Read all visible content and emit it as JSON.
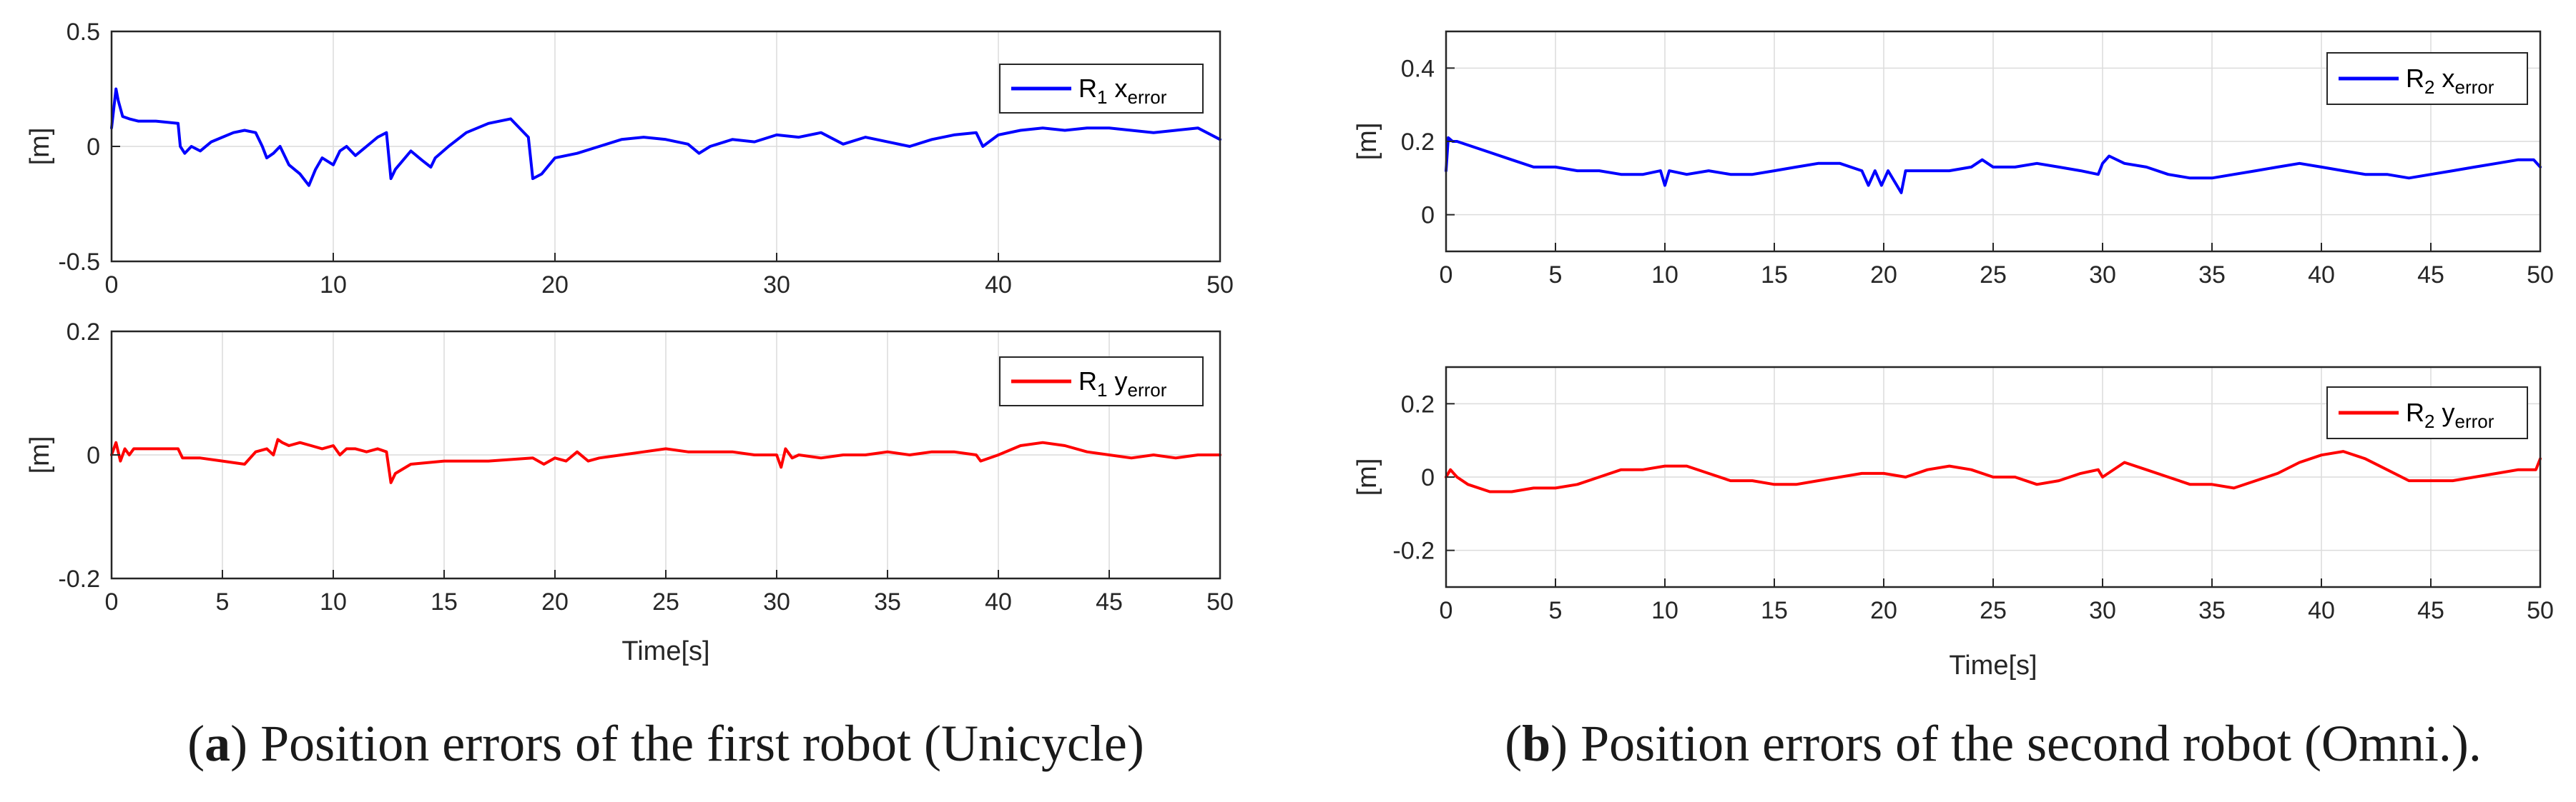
{
  "chart_data": [
    {
      "type": "line",
      "panel": "a-top",
      "title": "",
      "xlabel": "",
      "ylabel": "[m]",
      "xlim": [
        0,
        50
      ],
      "ylim": [
        -0.5,
        0.5
      ],
      "xticks": [
        "0",
        "10",
        "20",
        "30",
        "40",
        "50"
      ],
      "yticks": [
        "0.5",
        "0",
        "-0.5"
      ],
      "grid": true,
      "legend_position": "top-right",
      "series": [
        {
          "name": "R1 x_error",
          "legend_main": "R",
          "legend_sub1": "1",
          "legend_var": " x",
          "legend_sub2": "error",
          "color": "#0000ff",
          "x": [
            0,
            0.2,
            0.3,
            0.5,
            0.8,
            1.2,
            2,
            3,
            3.1,
            3.3,
            3.6,
            4,
            4.5,
            5,
            5.5,
            6,
            6.5,
            6.8,
            7,
            7.3,
            7.6,
            8,
            8.5,
            8.9,
            9.2,
            9.5,
            10,
            10.3,
            10.6,
            11,
            11.5,
            12,
            12.4,
            12.6,
            12.8,
            13.5,
            14,
            14.4,
            14.6,
            15.2,
            16,
            17,
            18,
            18.8,
            19,
            19.4,
            20,
            21,
            22,
            23,
            24,
            25,
            26,
            26.5,
            27,
            28,
            29,
            30,
            31,
            32,
            33,
            34,
            35,
            36,
            37,
            38,
            39,
            39.3,
            40,
            41,
            42,
            43,
            44,
            45,
            46,
            47,
            48,
            49,
            50
          ],
          "values": [
            0.08,
            0.25,
            0.2,
            0.13,
            0.12,
            0.11,
            0.11,
            0.1,
            0.0,
            -0.03,
            0.0,
            -0.02,
            0.02,
            0.04,
            0.06,
            0.07,
            0.06,
            0.0,
            -0.05,
            -0.03,
            0.0,
            -0.08,
            -0.12,
            -0.17,
            -0.1,
            -0.05,
            -0.08,
            -0.02,
            0.0,
            -0.04,
            0.0,
            0.04,
            0.06,
            -0.14,
            -0.1,
            -0.02,
            -0.06,
            -0.09,
            -0.05,
            0.0,
            0.06,
            0.1,
            0.12,
            0.04,
            -0.14,
            -0.12,
            -0.05,
            -0.03,
            0.0,
            0.03,
            0.04,
            0.03,
            0.01,
            -0.03,
            0.0,
            0.03,
            0.02,
            0.05,
            0.04,
            0.06,
            0.01,
            0.04,
            0.02,
            0.0,
            0.03,
            0.05,
            0.06,
            0.0,
            0.05,
            0.07,
            0.08,
            0.07,
            0.08,
            0.08,
            0.07,
            0.06,
            0.07,
            0.08,
            0.03
          ]
        }
      ]
    },
    {
      "type": "line",
      "panel": "a-bottom",
      "title": "",
      "xlabel": "Time[s]",
      "ylabel": "[m]",
      "xlim": [
        0,
        50
      ],
      "ylim": [
        -0.2,
        0.2
      ],
      "xticks": [
        "0",
        "5",
        "10",
        "15",
        "20",
        "25",
        "30",
        "35",
        "40",
        "45",
        "50"
      ],
      "yticks": [
        "0.2",
        "0",
        "-0.2"
      ],
      "grid": true,
      "legend_position": "top-right",
      "series": [
        {
          "name": "R1 y_error",
          "legend_main": "R",
          "legend_sub1": "1",
          "legend_var": " y",
          "legend_sub2": "error",
          "color": "#ff0000",
          "x": [
            0,
            0.2,
            0.4,
            0.6,
            0.8,
            1,
            1.3,
            1.6,
            2,
            2.5,
            3,
            3.2,
            3.5,
            4,
            5,
            6,
            6.5,
            7,
            7.3,
            7.5,
            7.7,
            8,
            8.5,
            9,
            9.5,
            10,
            10.3,
            10.6,
            11,
            11.5,
            12,
            12.4,
            12.6,
            12.8,
            13.5,
            15,
            17,
            19,
            19.5,
            20,
            20.5,
            21,
            21.5,
            22,
            23,
            24,
            25,
            26,
            27,
            28,
            29,
            30,
            30.2,
            30.4,
            30.7,
            31,
            32,
            33,
            34,
            35,
            36,
            37,
            38,
            39,
            39.2,
            40,
            41,
            42,
            43,
            44,
            45,
            46,
            47,
            48,
            49,
            50
          ],
          "values": [
            0.0,
            0.02,
            -0.01,
            0.01,
            0.0,
            0.01,
            0.01,
            0.01,
            0.01,
            0.01,
            0.01,
            -0.005,
            -0.005,
            -0.005,
            -0.01,
            -0.015,
            0.005,
            0.01,
            0.0,
            0.025,
            0.02,
            0.015,
            0.02,
            0.015,
            0.01,
            0.015,
            0.0,
            0.01,
            0.01,
            0.005,
            0.01,
            0.005,
            -0.045,
            -0.03,
            -0.015,
            -0.01,
            -0.01,
            -0.005,
            -0.015,
            -0.005,
            -0.01,
            0.005,
            -0.01,
            -0.005,
            0.0,
            0.005,
            0.01,
            0.005,
            0.005,
            0.005,
            0.0,
            0.0,
            -0.02,
            0.01,
            -0.005,
            0.0,
            -0.005,
            0.0,
            0.0,
            0.005,
            0.0,
            0.005,
            0.005,
            0.0,
            -0.01,
            0.0,
            0.015,
            0.02,
            0.015,
            0.005,
            0.0,
            -0.005,
            0.0,
            -0.005,
            0.0,
            0.0
          ]
        }
      ]
    },
    {
      "type": "line",
      "panel": "b-top",
      "title": "",
      "xlabel": "",
      "ylabel": "[m]",
      "xlim": [
        0,
        50
      ],
      "ylim": [
        -0.1,
        0.5
      ],
      "xticks": [
        "0",
        "5",
        "10",
        "15",
        "20",
        "25",
        "30",
        "35",
        "40",
        "45",
        "50"
      ],
      "yticks": [
        "0.4",
        "0.2",
        "0"
      ],
      "grid": true,
      "legend_position": "top-right",
      "series": [
        {
          "name": "R2 x_error",
          "legend_main": "R",
          "legend_sub1": "2",
          "legend_var": " x",
          "legend_sub2": "error",
          "color": "#0000ff",
          "x": [
            0,
            0.1,
            0.3,
            0.5,
            1,
            2,
            3,
            4,
            5,
            6,
            7,
            8,
            9,
            9.8,
            10,
            10.2,
            11,
            12,
            13,
            14,
            15,
            16,
            17,
            18,
            19,
            19.3,
            19.6,
            19.9,
            20.2,
            20.5,
            20.8,
            21,
            22,
            23,
            24,
            24.5,
            25,
            26,
            27,
            28,
            29,
            29.8,
            30,
            30.3,
            31,
            32,
            33,
            34,
            35,
            36,
            37,
            38,
            39,
            40,
            41,
            42,
            43,
            44,
            45,
            46,
            47,
            48,
            49,
            49.7,
            50
          ],
          "values": [
            0.12,
            0.21,
            0.2,
            0.2,
            0.19,
            0.17,
            0.15,
            0.13,
            0.13,
            0.12,
            0.12,
            0.11,
            0.11,
            0.12,
            0.08,
            0.12,
            0.11,
            0.12,
            0.11,
            0.11,
            0.12,
            0.13,
            0.14,
            0.14,
            0.12,
            0.08,
            0.12,
            0.08,
            0.12,
            0.09,
            0.06,
            0.12,
            0.12,
            0.12,
            0.13,
            0.15,
            0.13,
            0.13,
            0.14,
            0.13,
            0.12,
            0.11,
            0.14,
            0.16,
            0.14,
            0.13,
            0.11,
            0.1,
            0.1,
            0.11,
            0.12,
            0.13,
            0.14,
            0.13,
            0.12,
            0.11,
            0.11,
            0.1,
            0.11,
            0.12,
            0.13,
            0.14,
            0.15,
            0.15,
            0.13
          ]
        }
      ]
    },
    {
      "type": "line",
      "panel": "b-bottom",
      "title": "",
      "xlabel": "Time[s]",
      "ylabel": "[m]",
      "xlim": [
        0,
        50
      ],
      "ylim": [
        -0.3,
        0.3
      ],
      "xticks": [
        "0",
        "5",
        "10",
        "15",
        "20",
        "25",
        "30",
        "35",
        "40",
        "45",
        "50"
      ],
      "yticks": [
        "0.2",
        "0",
        "-0.2"
      ],
      "grid": true,
      "legend_position": "top-right",
      "series": [
        {
          "name": "R2 y_error",
          "legend_main": "R",
          "legend_sub1": "2",
          "legend_var": " y",
          "legend_sub2": "error",
          "color": "#ff0000",
          "x": [
            0,
            0.2,
            0.5,
            1,
            2,
            3,
            4,
            5,
            6,
            7,
            8,
            9,
            10,
            11,
            12,
            13,
            14,
            15,
            16,
            17,
            18,
            19,
            20,
            21,
            22,
            23,
            24,
            25,
            26,
            27,
            28,
            29,
            29.8,
            30,
            31,
            32,
            33,
            34,
            35,
            36,
            37,
            38,
            39,
            40,
            41,
            42,
            43,
            44,
            45,
            46,
            47,
            48,
            49,
            49.8,
            50
          ],
          "values": [
            0.0,
            0.02,
            0.0,
            -0.02,
            -0.04,
            -0.04,
            -0.03,
            -0.03,
            -0.02,
            0.0,
            0.02,
            0.02,
            0.03,
            0.03,
            0.01,
            -0.01,
            -0.01,
            -0.02,
            -0.02,
            -0.01,
            0.0,
            0.01,
            0.01,
            0.0,
            0.02,
            0.03,
            0.02,
            0.0,
            0.0,
            -0.02,
            -0.01,
            0.01,
            0.02,
            0.0,
            0.04,
            0.02,
            0.0,
            -0.02,
            -0.02,
            -0.03,
            -0.01,
            0.01,
            0.04,
            0.06,
            0.07,
            0.05,
            0.02,
            -0.01,
            -0.01,
            -0.01,
            0.0,
            0.01,
            0.02,
            0.02,
            0.05
          ]
        }
      ]
    }
  ],
  "captions": [
    {
      "label": "a",
      "open": "(",
      "close": ")",
      "text": " Position errors of the first robot (Unicycle)"
    },
    {
      "label": "b",
      "open": "(",
      "close": ")",
      "text": " Position errors of the second robot (Omni.)."
    }
  ]
}
